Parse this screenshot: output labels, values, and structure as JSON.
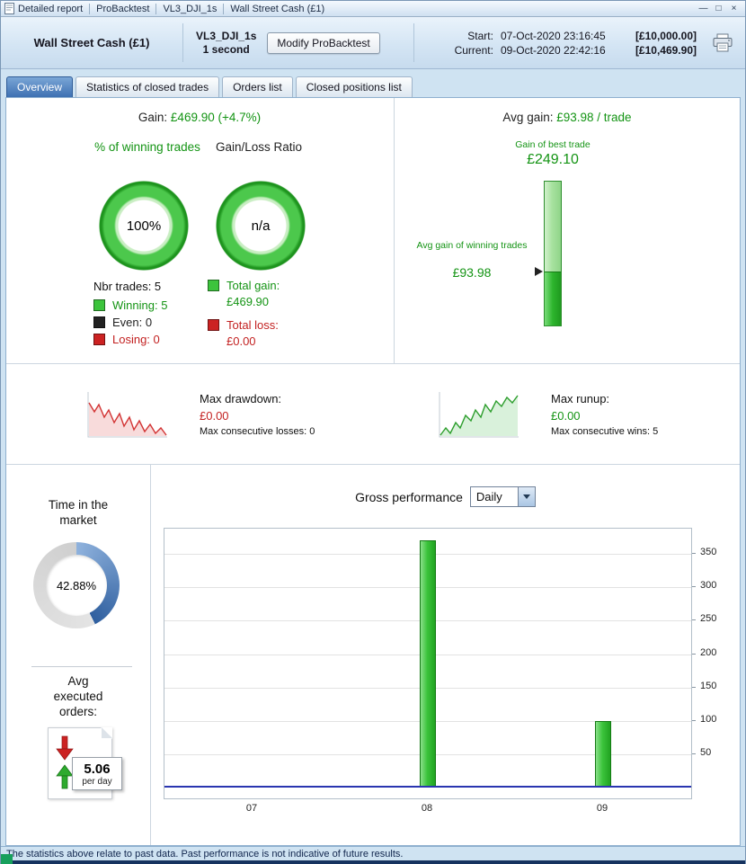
{
  "window": {
    "title_segments": [
      "Detailed report",
      "ProBacktest",
      "VL3_DJI_1s",
      "Wall Street Cash (£1)"
    ],
    "controls": {
      "minimize": "—",
      "maximize": "□",
      "close": "×"
    }
  },
  "header": {
    "instrument": "Wall Street Cash (£1)",
    "system_name": "VL3_DJI_1s",
    "timeframe": "1 second",
    "modify_button": "Modify ProBacktest",
    "start_label": "Start:",
    "start_datetime": "07-Oct-2020 23:16:45",
    "start_amount": "[£10,000.00]",
    "current_label": "Current:",
    "current_datetime": "09-Oct-2020 22:42:16",
    "current_amount": "[£10,469.90]"
  },
  "tabs": [
    {
      "label": "Overview",
      "active": true
    },
    {
      "label": "Statistics of closed trades",
      "active": false
    },
    {
      "label": "Orders list",
      "active": false
    },
    {
      "label": "Closed positions list",
      "active": false
    }
  ],
  "overview": {
    "gain_label": "Gain:",
    "gain_value": "£469.90 (+4.7%)",
    "winning_title": "% of winning trades",
    "winning_pct": "100%",
    "ratio_title": "Gain/Loss Ratio",
    "ratio_value": "n/a",
    "nbr_trades": "Nbr trades: 5",
    "legend": [
      {
        "label": "Winning: 5",
        "color": "#3cc43c"
      },
      {
        "label": "Even: 0",
        "color": "#222222"
      },
      {
        "label": "Losing: 0",
        "color": "#cc2222"
      }
    ],
    "total_gain_label": "Total gain:",
    "total_gain_value": "£469.90",
    "total_gain_color": "#3cc43c",
    "total_loss_label": "Total loss:",
    "total_loss_value": "£0.00",
    "total_loss_color": "#cc2222",
    "avg_gain_label": "Avg gain:",
    "avg_gain_value": "£93.98 / trade",
    "best_trade_label": "Gain of best trade",
    "best_trade_value": "£249.10",
    "best_trade_num": 249.1,
    "avg_win_label": "Avg gain of winning trades",
    "avg_win_value": "£93.98",
    "avg_win_num": 93.98,
    "drawdown": {
      "title": "Max drawdown:",
      "value": "£0.00",
      "sub": "Max consecutive losses: 0"
    },
    "runup": {
      "title": "Max runup:",
      "value": "£0.00",
      "sub": "Max consecutive wins: 5"
    },
    "time_in_market": {
      "title": "Time in the market",
      "value": "42.88%",
      "pct": 42.88
    },
    "avg_orders": {
      "title": "Avg executed orders:",
      "value": "5.06",
      "unit": "per day"
    },
    "gross_perf_label": "Gross performance",
    "period_select": "Daily"
  },
  "chart_data": {
    "type": "bar",
    "title": "Gross performance",
    "period": "Daily",
    "categories": [
      "07",
      "08",
      "09"
    ],
    "values": [
      0,
      369.92,
      99.98
    ],
    "yticks": [
      50,
      100,
      150,
      200,
      250,
      300,
      350
    ],
    "ylim": [
      0,
      380
    ],
    "xlabel": "",
    "ylabel": "",
    "grid": true,
    "y_axis_side": "right",
    "bar_color": "#3cc43c",
    "baseline_color": "#2a35b0"
  },
  "statusbar": {
    "text": "The statistics above relate to past data. Past performance is not indicative of future results."
  }
}
